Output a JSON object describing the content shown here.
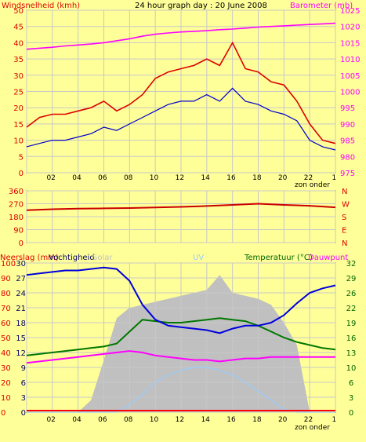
{
  "chart_data": [
    {
      "type": "line",
      "title": "24 hour graph day : 20 June 2008",
      "ylabel": "Windsnelheid (kmh)",
      "y2label": "Barometer (mb)",
      "x_labels": [
        "02",
        "04",
        "06",
        "08",
        "10",
        "12",
        "14",
        "16",
        "18",
        "20",
        "22",
        "1"
      ],
      "x_note": "zon onder",
      "y_ticks": [
        0,
        5,
        10,
        15,
        20,
        25,
        30,
        35,
        40,
        45,
        50
      ],
      "y2_ticks": [
        975,
        980,
        985,
        990,
        995,
        1000,
        1005,
        1010,
        1015,
        1020,
        1025
      ],
      "ylim": [
        0,
        50
      ],
      "y2lim": [
        975,
        1025
      ],
      "x": [
        0,
        1,
        2,
        3,
        4,
        5,
        6,
        7,
        8,
        9,
        10,
        11,
        12,
        13,
        14,
        15,
        16,
        17,
        18,
        19,
        20,
        21,
        22,
        23,
        24
      ],
      "series": [
        {
          "name": "Windsnelheid",
          "color": "#dd0000",
          "values": [
            14,
            17,
            18,
            18,
            19,
            20,
            22,
            19,
            21,
            24,
            29,
            31,
            32,
            33,
            35,
            33,
            40,
            32,
            31,
            28,
            27,
            22,
            15,
            10,
            9
          ]
        },
        {
          "name": "wind-average",
          "color": "#0000cc",
          "values": [
            8,
            9,
            10,
            10,
            11,
            12,
            14,
            13,
            15,
            17,
            19,
            21,
            22,
            22,
            24,
            22,
            26,
            22,
            21,
            19,
            18,
            16,
            10,
            8,
            7
          ]
        },
        {
          "name": "Barometer",
          "color": "#ff00ff",
          "values": [
            1013,
            1013.3,
            1013.6,
            1014,
            1014.3,
            1014.6,
            1015,
            1015.6,
            1016.2,
            1017,
            1017.6,
            1018,
            1018.3,
            1018.5,
            1018.7,
            1019,
            1019.2,
            1019.5,
            1019.8,
            1020,
            1020.2,
            1020.4,
            1020.6,
            1020.8,
            1021
          ]
        }
      ]
    },
    {
      "type": "line",
      "ylabel": "",
      "y_ticks": [
        0,
        90,
        180,
        270,
        360
      ],
      "ylim": [
        0,
        360
      ],
      "compass_labels": [
        "N",
        "W",
        "S",
        "E",
        "N"
      ],
      "x": [
        0,
        2,
        4,
        6,
        8,
        10,
        12,
        14,
        16,
        18,
        20,
        22,
        24
      ],
      "series": [
        {
          "name": "wind-direction",
          "color": "#cc0000",
          "values": [
            225,
            232,
            236,
            238,
            240,
            244,
            248,
            254,
            262,
            270,
            262,
            256,
            245
          ]
        }
      ]
    },
    {
      "type": "line",
      "ylabel": "Neerslag (mm)",
      "labels": [
        "Vochtigheid",
        "Solar",
        "UV"
      ],
      "y2label": "Temperatuur (°C)",
      "y2label_b": "Dauwpunt",
      "y_ticks_left": [
        0,
        10,
        20,
        30,
        40,
        50,
        60,
        70,
        80,
        90,
        100
      ],
      "y_ticks_mid": [
        0,
        3,
        6,
        9,
        12,
        15,
        18,
        21,
        24,
        27,
        30
      ],
      "y_ticks_right": [
        0,
        3,
        6,
        10,
        13,
        16,
        19,
        22,
        26,
        29,
        32
      ],
      "x_labels": [
        "02",
        "04",
        "06",
        "08",
        "10",
        "12",
        "14",
        "16",
        "18",
        "20",
        "22",
        "1"
      ],
      "x_note": "zon onder",
      "ylim": [
        0,
        100
      ],
      "x": [
        0,
        1,
        2,
        3,
        4,
        5,
        6,
        7,
        8,
        9,
        10,
        11,
        12,
        13,
        14,
        15,
        16,
        17,
        18,
        19,
        20,
        21,
        22,
        23,
        24
      ],
      "series": [
        {
          "name": "Vochtigheid",
          "color": "#0000dd",
          "values": [
            92,
            93,
            94,
            95,
            95,
            96,
            97,
            96,
            88,
            72,
            62,
            58,
            57,
            56,
            55,
            53,
            56,
            58,
            58,
            60,
            65,
            73,
            80,
            83,
            85
          ]
        },
        {
          "name": "Temperatuur",
          "color": "#007700",
          "values": [
            38,
            39,
            40,
            41,
            42,
            43,
            44,
            46,
            54,
            62,
            61,
            60,
            60,
            61,
            62,
            63,
            62,
            61,
            58,
            54,
            50,
            47,
            45,
            43,
            42
          ]
        },
        {
          "name": "Dauwpunt",
          "color": "#ff00ff",
          "values": [
            33,
            34,
            35,
            36,
            37,
            38,
            39,
            40,
            41,
            40,
            38,
            37,
            36,
            35,
            35,
            34,
            35,
            36,
            36,
            37,
            37,
            37,
            37,
            37,
            37
          ]
        },
        {
          "name": "Solar",
          "color": "#c0c0c0",
          "values": [
            0,
            0,
            0,
            0,
            0,
            8,
            35,
            63,
            70,
            72,
            74,
            76,
            78,
            80,
            82,
            92,
            80,
            78,
            76,
            72,
            60,
            45,
            0,
            0,
            0
          ]
        },
        {
          "name": "UV",
          "color": "#99ccff",
          "values": [
            0,
            0,
            0,
            0,
            0,
            0,
            0,
            0,
            5,
            12,
            20,
            25,
            28,
            30,
            30,
            28,
            25,
            20,
            14,
            8,
            2,
            0,
            0,
            0,
            0
          ]
        },
        {
          "name": "Neerslag",
          "color": "#ff0000",
          "values": [
            0,
            0,
            0,
            0,
            0,
            0,
            0,
            0,
            0,
            0,
            0,
            0,
            0,
            0,
            0,
            0,
            0,
            0,
            0,
            0,
            0,
            0,
            0,
            0,
            0
          ]
        }
      ]
    }
  ]
}
